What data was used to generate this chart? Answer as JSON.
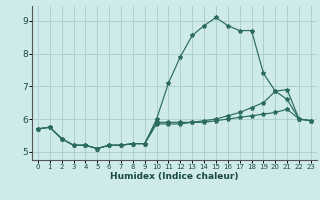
{
  "xlabel": "Humidex (Indice chaleur)",
  "bg_color": "#ceeaea",
  "grid_color": "#aacccc",
  "line_color": "#2a6b5e",
  "line1_y": [
    5.7,
    5.75,
    5.4,
    5.2,
    5.2,
    5.1,
    5.2,
    5.2,
    5.25,
    5.25,
    6.0,
    7.1,
    7.9,
    8.55,
    8.85,
    9.1,
    8.85,
    8.7,
    8.7,
    7.4,
    6.85,
    6.6,
    6.0,
    5.95
  ],
  "line2_y": [
    5.7,
    5.75,
    5.4,
    5.2,
    5.2,
    5.1,
    5.2,
    5.2,
    5.25,
    5.25,
    5.9,
    5.9,
    5.9,
    5.9,
    5.95,
    6.0,
    6.1,
    6.2,
    6.35,
    6.5,
    6.85,
    6.9,
    6.0,
    5.95
  ],
  "line3_y": [
    5.7,
    5.75,
    5.4,
    5.2,
    5.2,
    5.1,
    5.2,
    5.2,
    5.25,
    5.25,
    5.85,
    5.85,
    5.85,
    5.9,
    5.9,
    5.95,
    6.0,
    6.05,
    6.1,
    6.15,
    6.2,
    6.3,
    6.0,
    5.95
  ],
  "xlim": [
    -0.5,
    23.5
  ],
  "ylim": [
    4.75,
    9.45
  ],
  "yticks": [
    5,
    6,
    7,
    8,
    9
  ],
  "xticks": [
    0,
    1,
    2,
    3,
    4,
    5,
    6,
    7,
    8,
    9,
    10,
    11,
    12,
    13,
    14,
    15,
    16,
    17,
    18,
    19,
    20,
    21,
    22,
    23
  ]
}
